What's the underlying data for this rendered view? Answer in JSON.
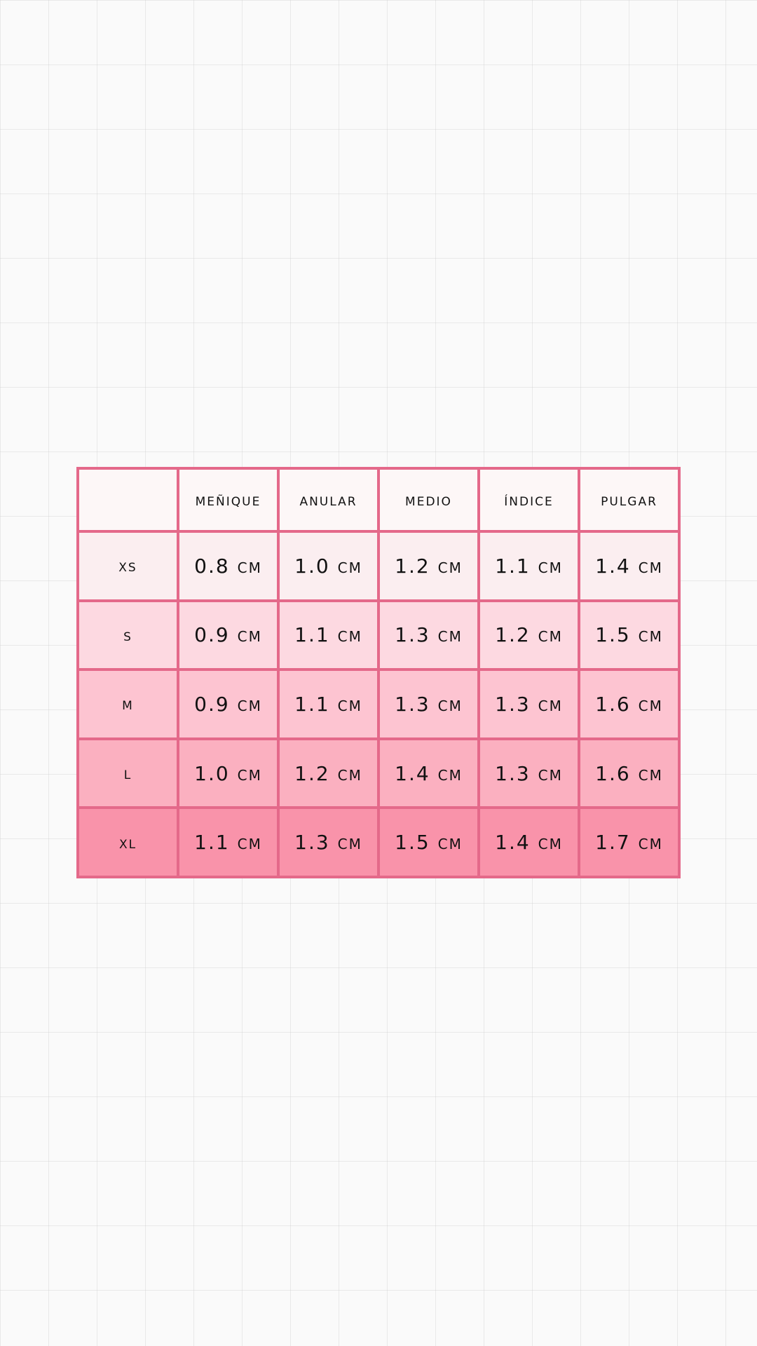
{
  "table": {
    "headers": [
      "",
      "Meñique",
      "Anular",
      "Medio",
      "Índice",
      "Pulgar"
    ],
    "rows": [
      {
        "size": "xs",
        "values": [
          "0.8 cm",
          "1.0 cm",
          "1.2 cm",
          "1.1 cm",
          "1.4 cm"
        ]
      },
      {
        "size": "s",
        "values": [
          "0.9 cm",
          "1.1 cm",
          "1.3 cm",
          "1.2 cm",
          "1.5 cm"
        ]
      },
      {
        "size": "m",
        "values": [
          "0.9 cm",
          "1.1 cm",
          "1.3 cm",
          "1.3 cm",
          "1.6 cm"
        ]
      },
      {
        "size": "l",
        "values": [
          "1.0 cm",
          "1.2 cm",
          "1.4 cm",
          "1.3 cm",
          "1.6 cm"
        ]
      },
      {
        "size": "xl",
        "values": [
          "1.1 cm",
          "1.3 cm",
          "1.5 cm",
          "1.4 cm",
          "1.7 cm"
        ]
      }
    ]
  },
  "colors": {
    "border": "#e4698a",
    "header_bg": "#fdf7f7",
    "row_bgs": [
      "#fbeef0",
      "#fdd9e1",
      "#fdc4d1",
      "#fbb0c0",
      "#f993aa"
    ],
    "page_bg": "#fafafa"
  }
}
